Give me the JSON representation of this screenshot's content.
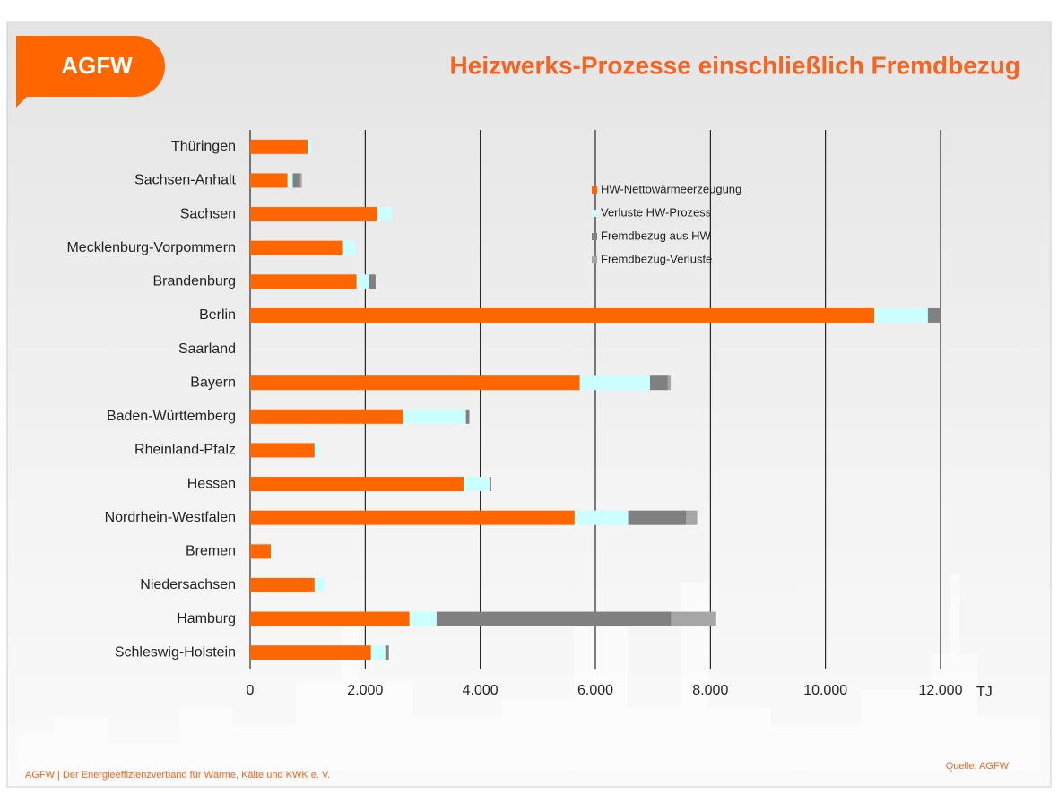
{
  "logo": "AGFW",
  "footer": "AGFW | Der Energieeffizienzverband für Wärme, Kälte und KWK e. V.",
  "source": "Quelle: AGFW",
  "chart_data": {
    "type": "stacked-bar-horizontal",
    "title": "Heizwerks-Prozesse einschließlich Fremdbezug",
    "x_unit": "TJ",
    "categories": [
      "Thüringen",
      "Sachsen-Anhalt",
      "Sachsen",
      "Mecklenburg-Vorpommern",
      "Brandenburg",
      "Berlin",
      "Saarland",
      "Bayern",
      "Baden-Württemberg",
      "Rheinland-Pfalz",
      "Hessen",
      "Nordrhein-Westfalen",
      "Bremen",
      "Niedersachsen",
      "Hamburg",
      "Schleswig-Holstein"
    ],
    "series": [
      {
        "name": "HW-Nettowärmeerzeugung",
        "color": "#ff6600",
        "values": [
          1000,
          650,
          2210,
          1600,
          1850,
          10850,
          0,
          5730,
          2660,
          1120,
          3710,
          5640,
          360,
          1120,
          2770,
          2100
        ]
      },
      {
        "name": "Verluste HW-Prozess",
        "color": "#ccffff",
        "values": [
          60,
          90,
          250,
          230,
          220,
          930,
          0,
          1220,
          1090,
          90,
          450,
          930,
          50,
          170,
          470,
          250
        ]
      },
      {
        "name": "Fremdbezug aus HW",
        "color": "#808080",
        "values": [
          0,
          130,
          0,
          0,
          110,
          220,
          0,
          310,
          60,
          0,
          30,
          1010,
          0,
          0,
          4080,
          60
        ]
      },
      {
        "name": "Fremdbezug-Verluste",
        "color": "#a6a6a6",
        "values": [
          0,
          30,
          0,
          0,
          0,
          0,
          0,
          50,
          0,
          0,
          0,
          190,
          0,
          0,
          780,
          0
        ]
      }
    ],
    "xlim": [
      0,
      12000
    ],
    "xticks": [
      0,
      {
        "value": 2000,
        "label": "2.000"
      },
      {
        "value": 4000,
        "label": "4.000"
      },
      {
        "value": 6000,
        "label": "6.000"
      },
      {
        "value": 8000,
        "label": "8.000"
      },
      {
        "value": 10000,
        "label": "10.000"
      },
      {
        "value": 12000,
        "label": "12.000"
      }
    ],
    "grid": true
  }
}
